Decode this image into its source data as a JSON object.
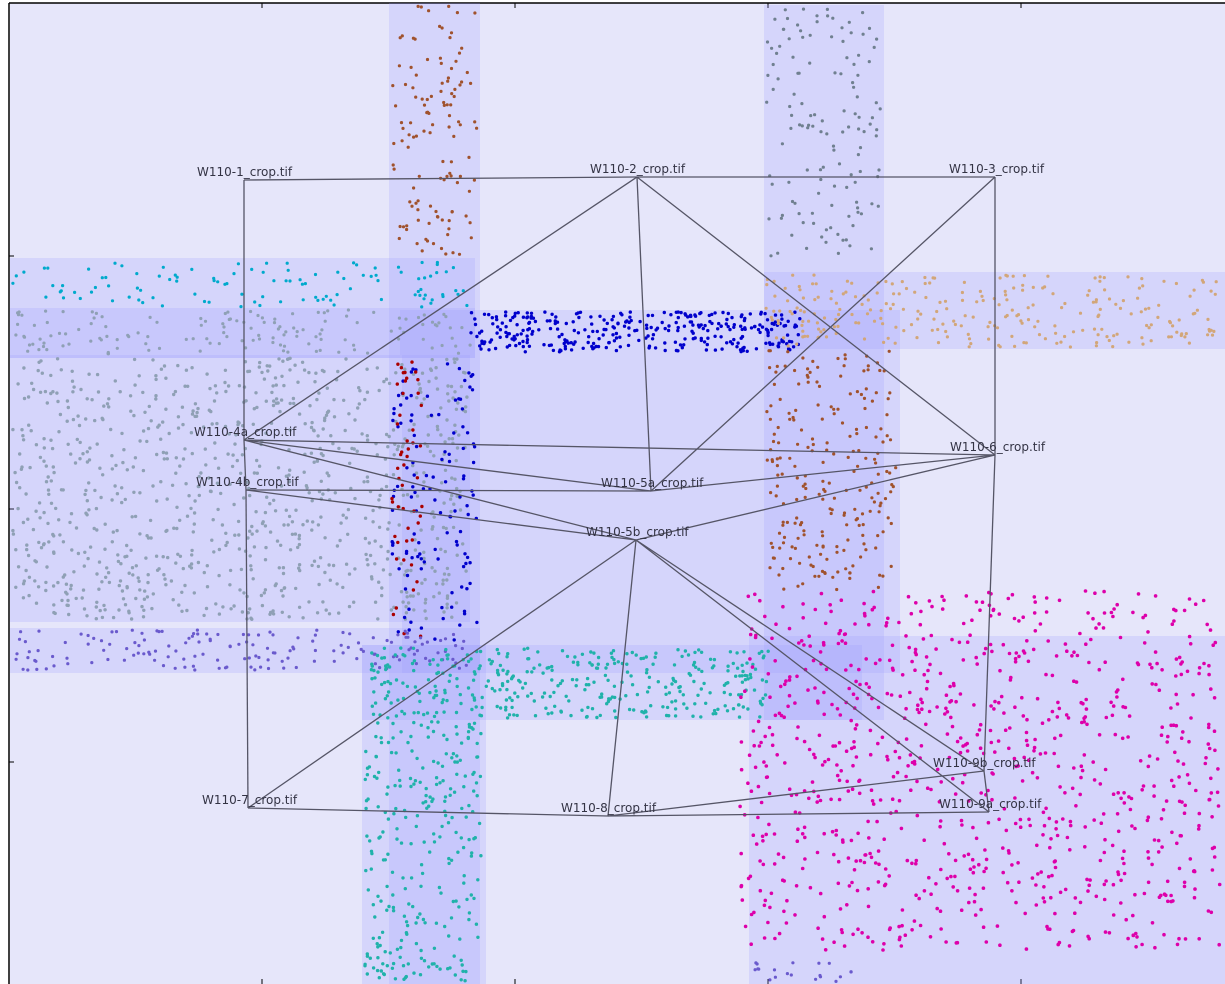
{
  "diagram": {
    "nodes": [
      {
        "id": "n1",
        "label": "W110-1_crop.tif"
      },
      {
        "id": "n2",
        "label": "W110-2_crop.tif"
      },
      {
        "id": "n3",
        "label": "W110-3_crop.tif"
      },
      {
        "id": "n4a",
        "label": "W110-4a_crop.tif"
      },
      {
        "id": "n4b",
        "label": "W110-4b_crop.tif"
      },
      {
        "id": "n5a",
        "label": "W110-5a_crop.tif"
      },
      {
        "id": "n5b",
        "label": "W110-5b_crop.tif"
      },
      {
        "id": "n6",
        "label": "W110-6_crop.tif"
      },
      {
        "id": "n7",
        "label": "W110-7_crop.tif"
      },
      {
        "id": "n8",
        "label": "W110-8_crop.tif"
      },
      {
        "id": "n9a",
        "label": "W110-9a_crop.tif"
      },
      {
        "id": "n9b",
        "label": "W110-9b_crop.tif"
      }
    ],
    "edges": [
      [
        "n1",
        "n2"
      ],
      [
        "n2",
        "n3"
      ],
      [
        "n1",
        "n4a"
      ],
      [
        "n2",
        "n4a"
      ],
      [
        "n2",
        "n5a"
      ],
      [
        "n2",
        "n6"
      ],
      [
        "n3",
        "n5a"
      ],
      [
        "n3",
        "n6"
      ],
      [
        "n4a",
        "n4b"
      ],
      [
        "n4a",
        "n5a"
      ],
      [
        "n4a",
        "n5b"
      ],
      [
        "n4a",
        "n6"
      ],
      [
        "n4b",
        "n5a"
      ],
      [
        "n4b",
        "n5b"
      ],
      [
        "n5a",
        "n6"
      ],
      [
        "n5b",
        "n6"
      ],
      [
        "n4b",
        "n7"
      ],
      [
        "n5b",
        "n7"
      ],
      [
        "n5b",
        "n8"
      ],
      [
        "n5b",
        "n9a"
      ],
      [
        "n5b",
        "n9b"
      ],
      [
        "n7",
        "n8"
      ],
      [
        "n8",
        "n9a"
      ],
      [
        "n8",
        "n9b"
      ],
      [
        "n6",
        "n9b"
      ],
      [
        "n9a",
        "n9b"
      ]
    ],
    "colors": {
      "background": "#e6e6fa",
      "tile_fill": "#9999ff",
      "edge": "#555566",
      "point_series": [
        "#999999",
        "#a0522d",
        "#8b6914",
        "#00aacc",
        "#708090",
        "#0000cc",
        "#aa0000",
        "#6a5acd",
        "#20b2aa",
        "#dd00aa",
        "#d2a679",
        "#8fa0b5"
      ]
    }
  }
}
